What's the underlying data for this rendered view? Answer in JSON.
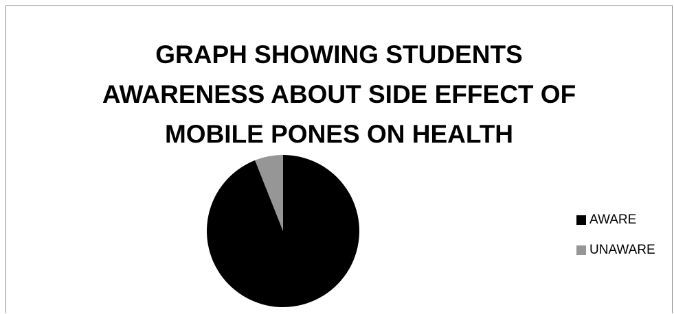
{
  "chart_data": {
    "type": "pie",
    "title_lines": [
      "GRAPH SHOWING STUDENTS",
      "AWARENESS ABOUT SIDE EFFECT OF",
      "MOBILE PONES ON HEALTH"
    ],
    "categories": [
      "AWARE",
      "UNAWARE"
    ],
    "values": [
      94,
      6
    ],
    "colors": [
      "#000000",
      "#969696"
    ],
    "legend_position": "right"
  }
}
